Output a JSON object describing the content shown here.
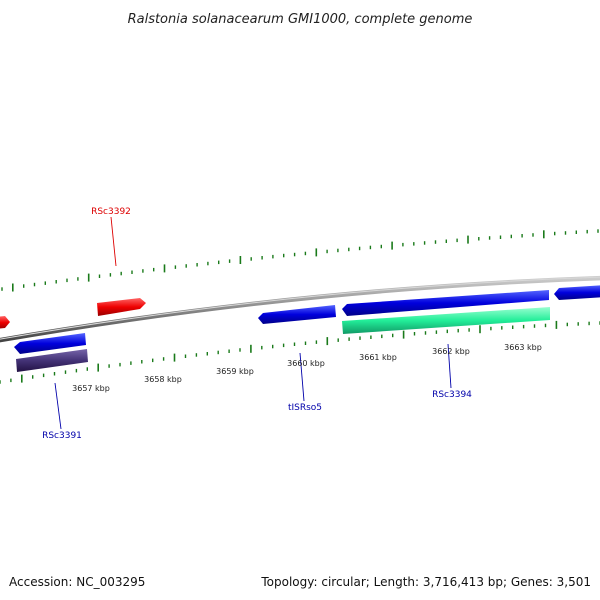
{
  "title": "Ralstonia solanacearum GMI1000, complete genome",
  "footer": {
    "accession": "Accession: NC_003295",
    "summary": "Topology: circular; Length: 3,716,413 bp; Genes: 3,501"
  },
  "scale_labels": [
    "3657 kbp",
    "3658 kbp",
    "3659 kbp",
    "3660 kbp",
    "3661 kbp",
    "3662 kbp",
    "3663 kbp"
  ],
  "gene_labels": [
    {
      "text": "RSc3392",
      "color": "#dd0000"
    },
    {
      "text": "RSc3391",
      "color": "#0000aa"
    },
    {
      "text": "tISRso5",
      "color": "#0000aa"
    },
    {
      "text": "RSc3394",
      "color": "#0000aa"
    }
  ],
  "colors": {
    "forward_gene": "#0000dd",
    "reverse_gene": "#ee1111",
    "cds_green": "#22ee99",
    "cds_purple": "#443377",
    "backbone": "#888888",
    "tick": "#1a7a1a"
  }
}
